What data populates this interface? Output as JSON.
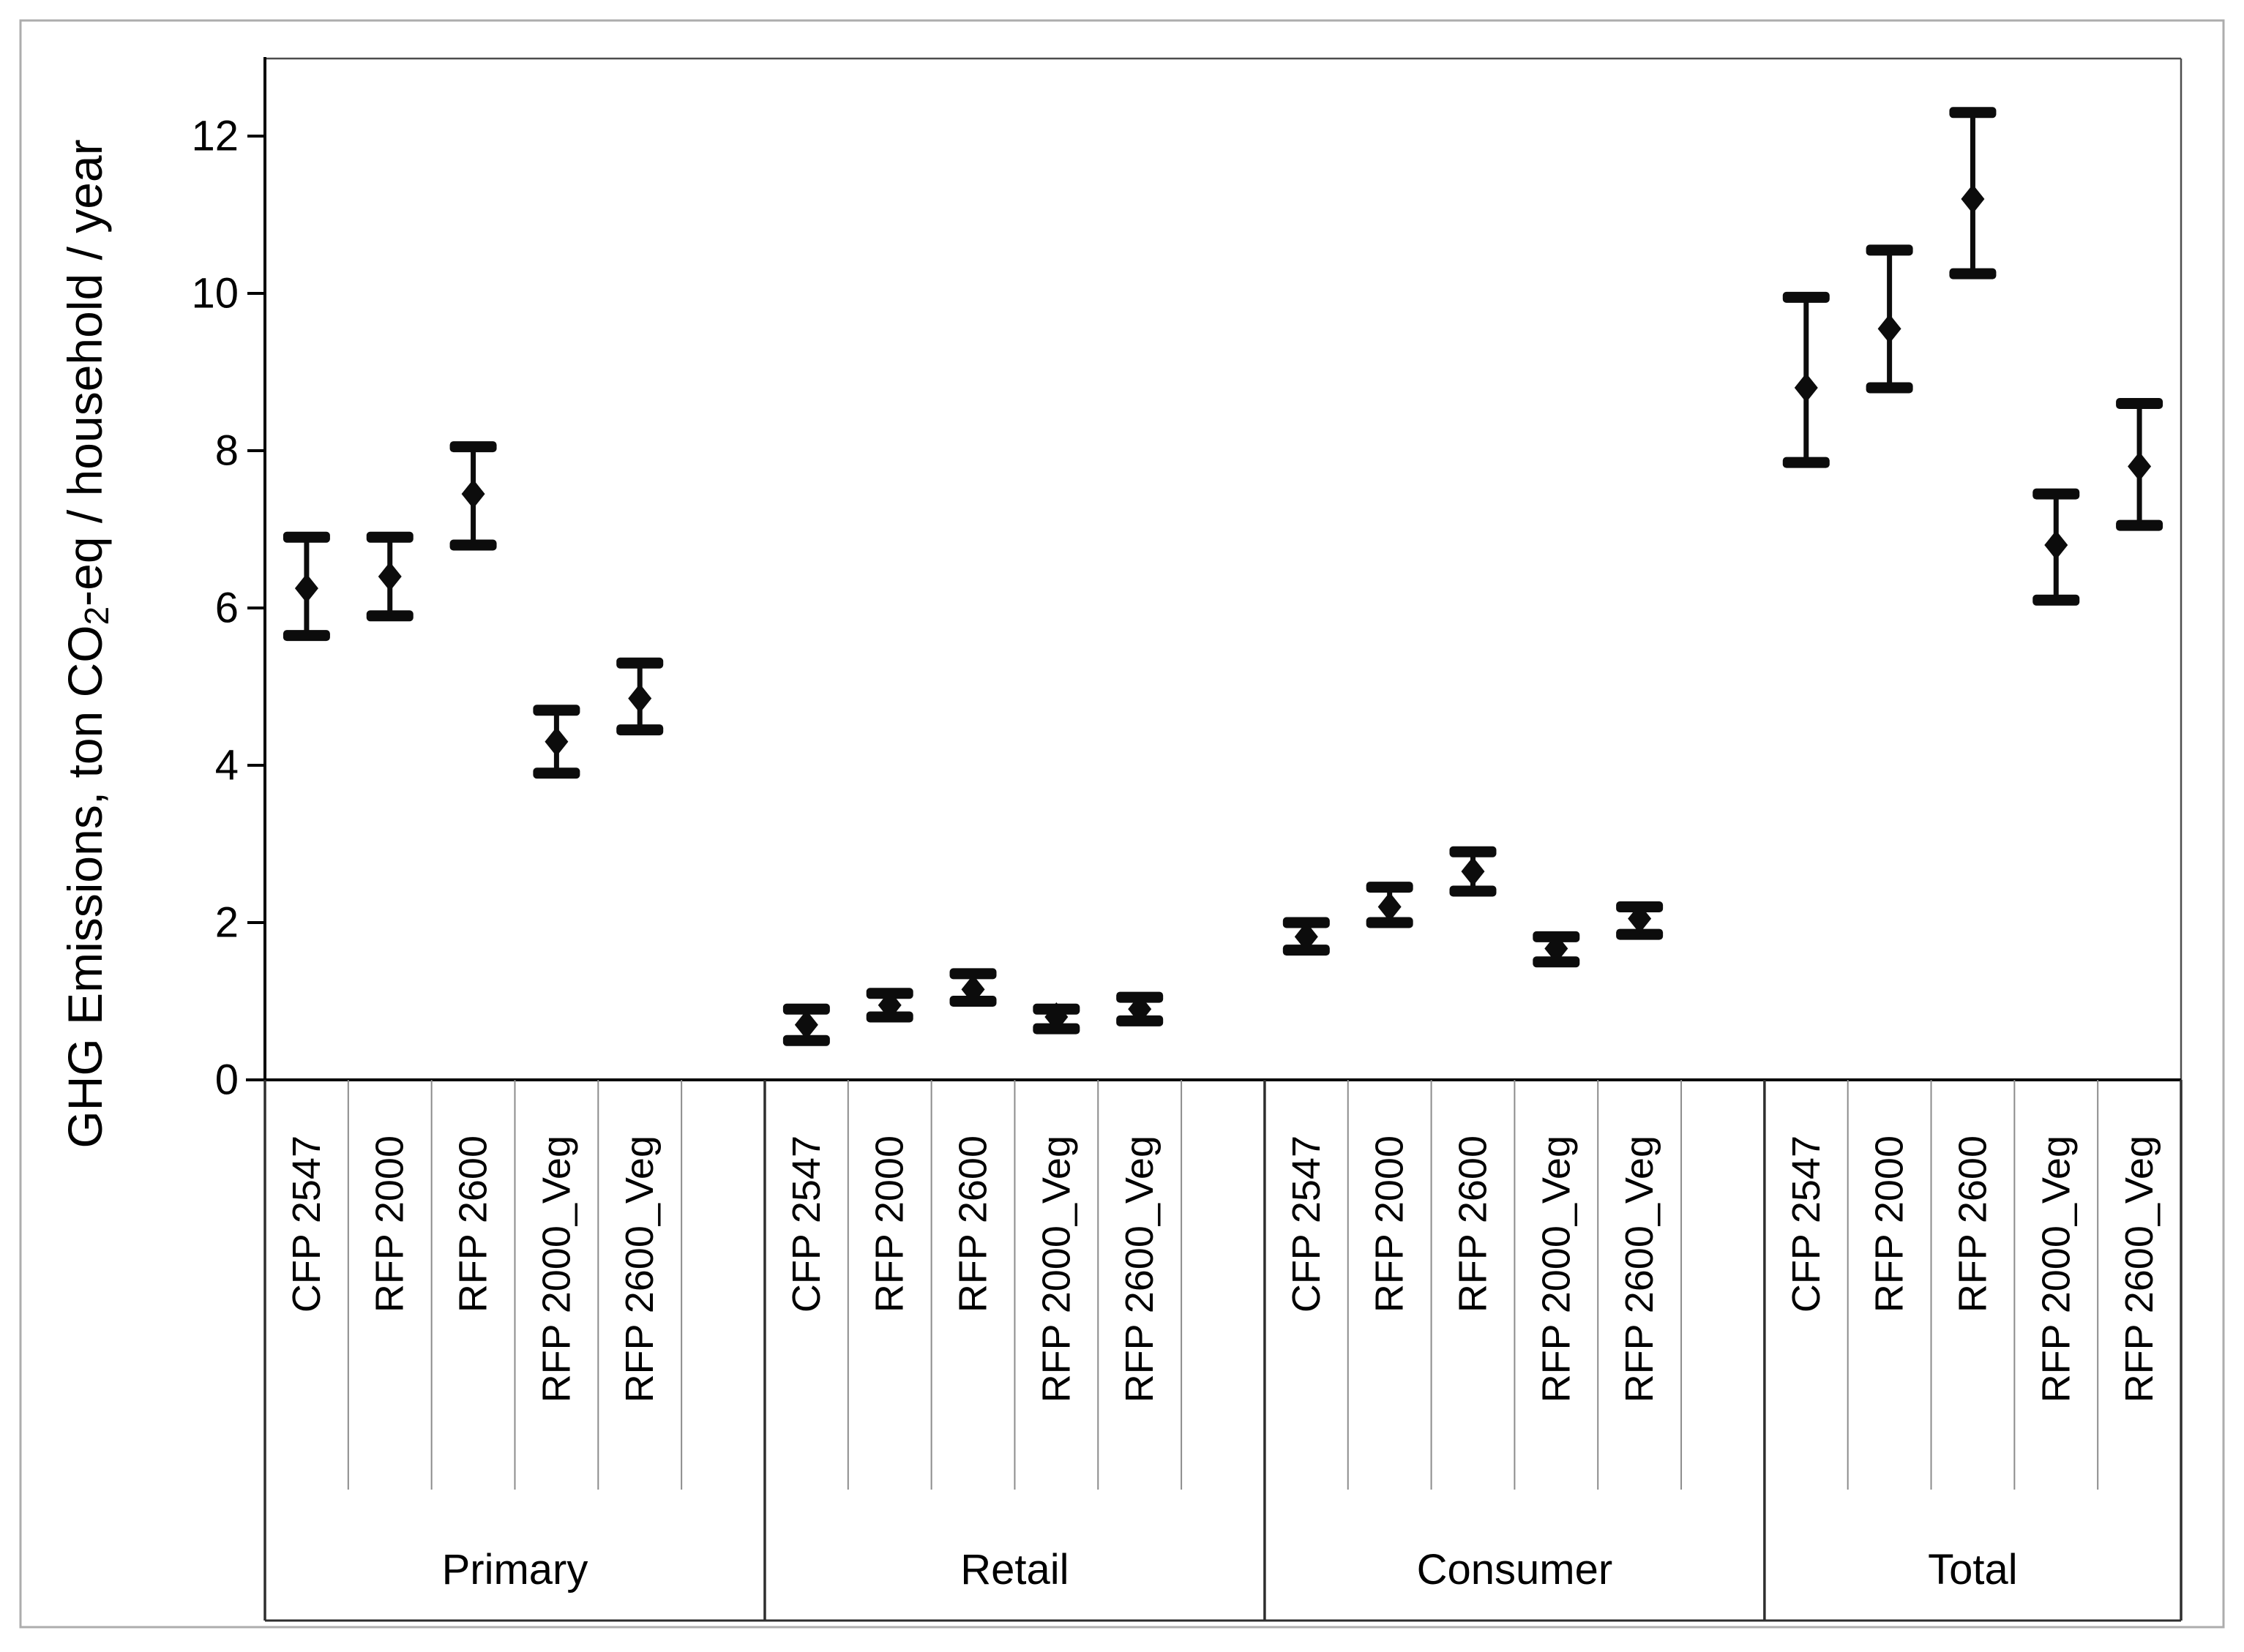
{
  "figure": {
    "background": "#ffffff",
    "outer_border_color": "#adadad"
  },
  "chart_data": {
    "type": "scatter",
    "subtype": "grouped-point-errorbar",
    "title": "",
    "xlabel": "",
    "ylabel": "GHG Emissions, ton CO2-eq / household / year",
    "ylabel_parts": [
      "GHG Emissions, ton CO",
      "2",
      "-eq / household / year"
    ],
    "ylim": [
      0,
      13
    ],
    "yticks": [
      0,
      2,
      4,
      6,
      8,
      10,
      12
    ],
    "grid": false,
    "legend": "none",
    "error_bars": true,
    "marker_shape": "diamond",
    "categories": [
      "CFP 2547",
      "RFP 2000",
      "RFP 2600",
      "RFP 2000_Veg",
      "RFP 2600_Veg"
    ],
    "groups": [
      {
        "label": "Primary",
        "points": [
          {
            "label": "CFP 2547",
            "mean": 6.25,
            "upper": 6.9,
            "lower": 5.65
          },
          {
            "label": "RFP 2000",
            "mean": 6.4,
            "upper": 6.9,
            "lower": 5.9
          },
          {
            "label": "RFP 2600",
            "mean": 7.45,
            "upper": 8.05,
            "lower": 6.8
          },
          {
            "label": "RFP 2000_Veg",
            "mean": 4.3,
            "upper": 4.7,
            "lower": 3.9
          },
          {
            "label": "RFP 2600_Veg",
            "mean": 4.85,
            "upper": 5.3,
            "lower": 4.45
          }
        ]
      },
      {
        "label": "Retail",
        "points": [
          {
            "label": "CFP 2547",
            "mean": 0.7,
            "upper": 0.9,
            "lower": 0.5
          },
          {
            "label": "RFP 2000",
            "mean": 0.95,
            "upper": 1.1,
            "lower": 0.8
          },
          {
            "label": "RFP 2600",
            "mean": 1.15,
            "upper": 1.35,
            "lower": 1.0
          },
          {
            "label": "RFP 2000_Veg",
            "mean": 0.8,
            "upper": 0.9,
            "lower": 0.65
          },
          {
            "label": "RFP 2600_Veg",
            "mean": 0.9,
            "upper": 1.05,
            "lower": 0.75
          }
        ]
      },
      {
        "label": "Consumer",
        "points": [
          {
            "label": "CFP 2547",
            "mean": 1.82,
            "upper": 2.0,
            "lower": 1.65
          },
          {
            "label": "RFP 2000",
            "mean": 2.2,
            "upper": 2.45,
            "lower": 2.0
          },
          {
            "label": "RFP 2600",
            "mean": 2.65,
            "upper": 2.9,
            "lower": 2.4
          },
          {
            "label": "RFP 2000_Veg",
            "mean": 1.67,
            "upper": 1.82,
            "lower": 1.5
          },
          {
            "label": "RFP 2600_Veg",
            "mean": 2.05,
            "upper": 2.2,
            "lower": 1.85
          }
        ]
      },
      {
        "label": "Total",
        "points": [
          {
            "label": "CFP 2547",
            "mean": 8.8,
            "upper": 9.95,
            "lower": 7.85
          },
          {
            "label": "RFP 2000",
            "mean": 9.55,
            "upper": 10.55,
            "lower": 8.8
          },
          {
            "label": "RFP 2600",
            "mean": 11.2,
            "upper": 12.3,
            "lower": 10.25
          },
          {
            "label": "RFP 2000_Veg",
            "mean": 6.8,
            "upper": 7.45,
            "lower": 6.1
          },
          {
            "label": "RFP 2600_Veg",
            "mean": 7.8,
            "upper": 8.6,
            "lower": 7.05
          }
        ]
      }
    ],
    "colors": {
      "marker": "#0c0c0c",
      "axis": "#000000",
      "frame": "#4d4d4d",
      "cell_separator": "#8c8c8c",
      "group_boundary": "#2e2e2e",
      "text": "#000000"
    }
  }
}
